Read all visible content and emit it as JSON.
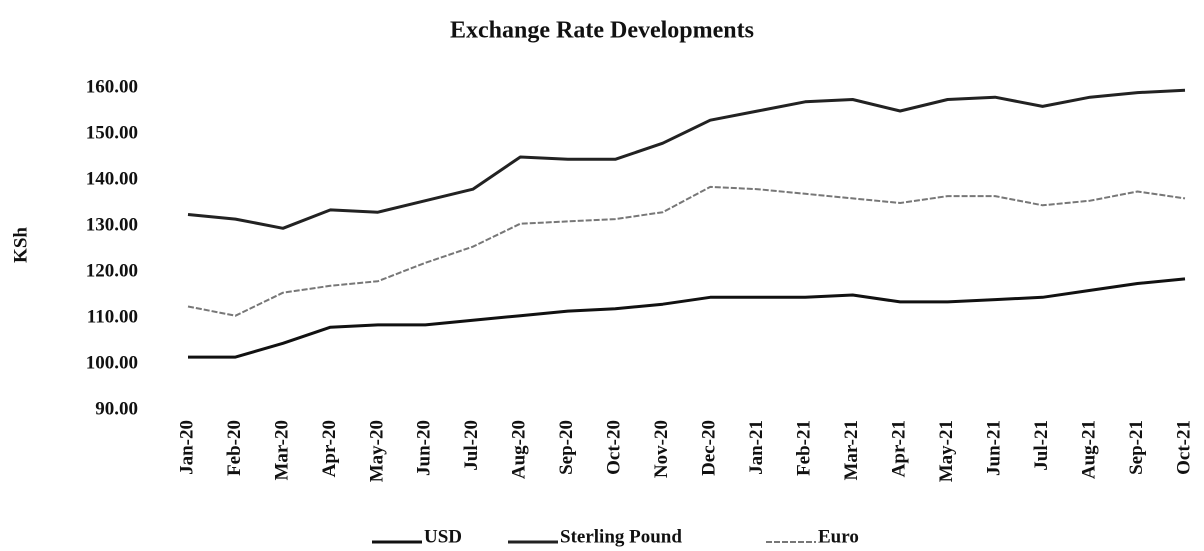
{
  "chart_data": {
    "type": "line",
    "title": "Exchange Rate Developments",
    "y_label": "KSh",
    "categories": [
      "Jan-20",
      "Feb-20",
      "Mar-20",
      "Apr-20",
      "May-20",
      "Jun-20",
      "Jul-20",
      "Aug-20",
      "Sep-20",
      "Oct-20",
      "Nov-20",
      "Dec-20",
      "Jan-21",
      "Feb-21",
      "Mar-21",
      "Apr-21",
      "May-21",
      "Jun-21",
      "Jul-21",
      "Aug-21",
      "Sep-21",
      "Oct-21"
    ],
    "series": [
      {
        "name": "USD",
        "color": "#111111",
        "values": [
          101.5,
          101.5,
          104.5,
          108,
          108.5,
          108.5,
          109.5,
          110.5,
          111.5,
          112,
          113,
          114.5,
          114.5,
          114.5,
          115,
          113.5,
          113.5,
          114,
          114.5,
          116,
          117.5,
          118.5
        ]
      },
      {
        "name": "Sterling Pound",
        "color": "#222222",
        "values": [
          132.5,
          131.5,
          129.5,
          133.5,
          133,
          135.5,
          138,
          145,
          144.5,
          144.5,
          148,
          153,
          155,
          157,
          157.5,
          155,
          157.5,
          158,
          156,
          158,
          159,
          159.5
        ]
      },
      {
        "name": "Euro",
        "color": "#777777",
        "values": [
          112.5,
          110.5,
          115.5,
          117,
          118,
          122,
          125.5,
          130.5,
          131,
          131.5,
          133,
          138.5,
          138,
          137,
          136,
          135,
          136.5,
          136.5,
          134.5,
          135.5,
          137.5,
          136
        ]
      }
    ],
    "ylim": [
      90,
      160
    ],
    "yticks": [
      {
        "value": 90,
        "label": "90.00"
      },
      {
        "value": 100,
        "label": "100.00"
      },
      {
        "value": 110,
        "label": "110.00"
      },
      {
        "value": 120,
        "label": "120.00"
      },
      {
        "value": 130,
        "label": "130.00"
      },
      {
        "value": 140,
        "label": "140.00"
      },
      {
        "value": 150,
        "label": "150.00"
      },
      {
        "value": 160,
        "label": "160.00"
      }
    ],
    "legend": "bottom"
  }
}
